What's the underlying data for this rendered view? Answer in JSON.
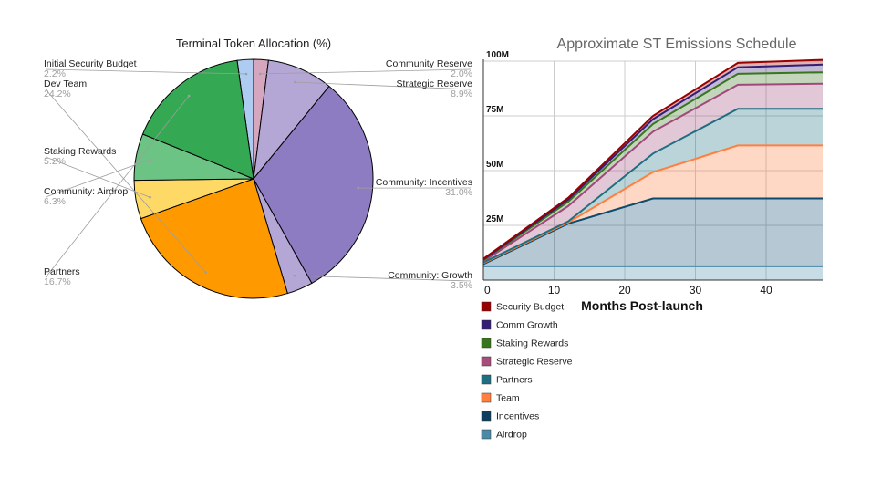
{
  "chart_data": [
    {
      "type": "pie",
      "title": "Terminal Token Allocation (%)",
      "slices": [
        {
          "label": "Initial Security Budget",
          "value": 2.2,
          "display": "2.2%",
          "color": "#aecbf2",
          "side": "left"
        },
        {
          "label": "Community Reserve",
          "value": 2.0,
          "display": "2.0%",
          "color": "#d5a6bd",
          "side": "right"
        },
        {
          "label": "Strategic Reserve",
          "value": 8.9,
          "display": "8.9%",
          "color": "#b4a7d6",
          "side": "right"
        },
        {
          "label": "Community: Incentives",
          "value": 31.0,
          "display": "31.0%",
          "color": "#8e7cc3",
          "side": "right"
        },
        {
          "label": "Community: Growth",
          "value": 3.5,
          "display": "3.5%",
          "color": "#b4a7d6",
          "side": "right"
        },
        {
          "label": "Dev Team",
          "value": 24.2,
          "display": "24.2%",
          "color": "#ff9900",
          "side": "left"
        },
        {
          "label": "Staking Rewards",
          "value": 5.2,
          "display": "5.2%",
          "color": "#ffd966",
          "side": "left"
        },
        {
          "label": "Community: Airdrop",
          "value": 6.3,
          "display": "6.3%",
          "color": "#6cc484",
          "side": "left"
        },
        {
          "label": "Partners",
          "value": 16.7,
          "display": "16.7%",
          "color": "#34a853",
          "side": "left"
        }
      ]
    },
    {
      "type": "area",
      "stacked": true,
      "title": "Approximate ST Emissions Schedule",
      "xlabel": "Months Post-launch",
      "ylabel": "",
      "x": [
        0,
        12,
        24,
        36,
        48
      ],
      "xticks": [
        "0",
        "10",
        "20",
        "30",
        "40"
      ],
      "xtick_values": [
        0,
        10,
        20,
        30,
        40
      ],
      "yticks": [
        "100M",
        "75M",
        "50M",
        "25M"
      ],
      "ytick_values": [
        100,
        75,
        50,
        25
      ],
      "ylim": [
        0,
        100
      ],
      "xlim": [
        0,
        48
      ],
      "series": [
        {
          "name": "Airdrop",
          "color": "#4a8aa8",
          "values": [
            6.3,
            6.3,
            6.3,
            6.3,
            6.3
          ]
        },
        {
          "name": "Incentives",
          "color": "#0c4a6e",
          "values": [
            1.0,
            19.5,
            31.0,
            31.0,
            31.0
          ]
        },
        {
          "name": "Team",
          "color": "#ff7f3f",
          "values": [
            0.5,
            0.5,
            12.0,
            24.2,
            24.2
          ]
        },
        {
          "name": "Partners",
          "color": "#1f6f80",
          "values": [
            0.3,
            0.5,
            8.5,
            16.7,
            16.7
          ]
        },
        {
          "name": "Strategic Reserve",
          "color": "#a0487a",
          "values": [
            0.5,
            7.0,
            10.0,
            11.0,
            11.5
          ]
        },
        {
          "name": "Staking Rewards",
          "color": "#38761d",
          "values": [
            0.5,
            2.0,
            3.5,
            5.0,
            5.2
          ]
        },
        {
          "name": "Comm Growth",
          "color": "#351c75",
          "values": [
            0.3,
            1.0,
            2.2,
            3.0,
            3.5
          ]
        },
        {
          "name": "Security Budget",
          "color": "#990000",
          "values": [
            0.3,
            0.8,
            1.5,
            2.0,
            2.2
          ]
        }
      ],
      "legend": [
        {
          "name": "Security Budget",
          "color": "#990000"
        },
        {
          "name": "Comm Growth",
          "color": "#351c75"
        },
        {
          "name": "Staking Rewards",
          "color": "#38761d"
        },
        {
          "name": "Strategic Reserve",
          "color": "#a64d79"
        },
        {
          "name": "Partners",
          "color": "#1f6f80"
        },
        {
          "name": "Team",
          "color": "#ff7f3f"
        },
        {
          "name": "Incentives",
          "color": "#0c3f5e"
        },
        {
          "name": "Airdrop",
          "color": "#4a8aa8"
        }
      ],
      "legend_position": "bottom-left"
    }
  ]
}
